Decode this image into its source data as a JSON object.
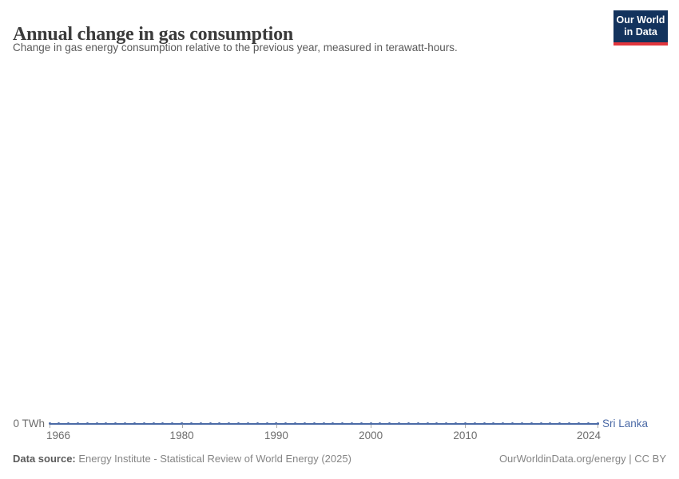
{
  "header": {
    "title": "Annual change in gas consumption",
    "subtitle": "Change in gas energy consumption relative to the previous year, measured in terawatt-hours."
  },
  "logo": {
    "line1": "Our World",
    "line2": "in Data",
    "bg_color": "#13335d",
    "accent_color": "#e2363d"
  },
  "chart_data": {
    "type": "line",
    "title": "Annual change in gas consumption",
    "subtitle": "Change in gas energy consumption relative to the previous year, measured in terawatt-hours.",
    "xlabel": "",
    "ylabel": "",
    "unit": "TWh",
    "grid": false,
    "legend_position": "end-of-line",
    "xlim": [
      1966,
      2024
    ],
    "x_ticks": [
      1966,
      1980,
      1990,
      2000,
      2010,
      2024
    ],
    "y_tick_labels": [
      "0 TWh"
    ],
    "x": [
      1966,
      1967,
      1968,
      1969,
      1970,
      1971,
      1972,
      1973,
      1974,
      1975,
      1976,
      1977,
      1978,
      1979,
      1980,
      1981,
      1982,
      1983,
      1984,
      1985,
      1986,
      1987,
      1988,
      1989,
      1990,
      1991,
      1992,
      1993,
      1994,
      1995,
      1996,
      1997,
      1998,
      1999,
      2000,
      2001,
      2002,
      2003,
      2004,
      2005,
      2006,
      2007,
      2008,
      2009,
      2010,
      2011,
      2012,
      2013,
      2014,
      2015,
      2016,
      2017,
      2018,
      2019,
      2020,
      2021,
      2022,
      2023,
      2024
    ],
    "series": [
      {
        "name": "Sri Lanka",
        "color": "#4b6aa6",
        "values": [
          0,
          0,
          0,
          0,
          0,
          0,
          0,
          0,
          0,
          0,
          0,
          0,
          0,
          0,
          0,
          0,
          0,
          0,
          0,
          0,
          0,
          0,
          0,
          0,
          0,
          0,
          0,
          0,
          0,
          0,
          0,
          0,
          0,
          0,
          0,
          0,
          0,
          0,
          0,
          0,
          0,
          0,
          0,
          0,
          0,
          0,
          0,
          0,
          0,
          0,
          0,
          0,
          0,
          0,
          0,
          0,
          0,
          0,
          0
        ]
      }
    ]
  },
  "footer": {
    "datasource_label": "Data source:",
    "datasource_value": "Energy Institute - Statistical Review of World Energy (2025)",
    "attribution": "OurWorldinData.org/energy | CC BY"
  }
}
